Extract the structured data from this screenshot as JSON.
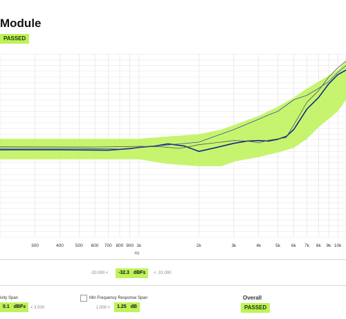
{
  "header": {
    "title": "Module",
    "status": "PASSED"
  },
  "chart_data": {
    "type": "line",
    "xlabel": "Hz",
    "x_scale": "log",
    "xlim": [
      200,
      11000
    ],
    "ylim": [
      -40,
      40
    ],
    "x_tick_values": [
      300,
      400,
      500,
      600,
      700,
      800,
      900,
      1000,
      2000,
      3000,
      4000,
      5000,
      6000,
      7000,
      8000,
      9000,
      10000
    ],
    "x_tick_labels": [
      "300",
      "400",
      "500",
      "600",
      "700",
      "800",
      "900",
      "1k",
      "2k",
      "3k",
      "4k",
      "5k",
      "6k",
      "7k",
      "8k",
      "9k",
      "10k"
    ],
    "grid": true,
    "tolerance_band": {
      "color": "#bff25a",
      "x": [
        200,
        500,
        800,
        1000,
        1400,
        2000,
        2600,
        3000,
        4000,
        5000,
        6000,
        7000,
        8000,
        10000,
        11000
      ],
      "upper": [
        3,
        3,
        3,
        3,
        4,
        5,
        7,
        9,
        13,
        17,
        21,
        25,
        28,
        33,
        37
      ],
      "lower": [
        -6,
        -6,
        -6,
        -6,
        -8,
        -9,
        -9,
        -7,
        -5,
        -3,
        -1,
        3,
        8,
        15,
        20
      ]
    },
    "series": [
      {
        "color": "#0a2a8c",
        "width": 1.6,
        "x": [
          200,
          400,
          700,
          900,
          1000,
          1200,
          1400,
          1700,
          2000,
          2400,
          3000,
          3500,
          4000,
          4500,
          5000,
          5500,
          6000,
          7000,
          8000,
          9000,
          10000,
          11000
        ],
        "y": [
          -1.8,
          -1.8,
          -2,
          -1.3,
          -0.8,
          -0.2,
          0.8,
          -0.2,
          -2.5,
          -1,
          1,
          2,
          2.2,
          2,
          2.8,
          4,
          7,
          16,
          21,
          27,
          31,
          33
        ]
      },
      {
        "color": "#3b4aa8",
        "width": 0.8,
        "x": [
          200,
          500,
          800,
          1000,
          1400,
          2000,
          2400,
          3000,
          3500,
          4000,
          4500,
          5000,
          6000,
          7000,
          8000,
          9000,
          10000,
          11000
        ],
        "y": [
          -1.2,
          -1.2,
          -1.5,
          -0.8,
          0.3,
          1.5,
          4,
          7,
          9.5,
          11.5,
          13.5,
          15,
          20,
          22,
          25,
          28,
          32,
          35
        ]
      },
      {
        "color": "#555555",
        "width": 0.8,
        "x": [
          200,
          600,
          900,
          1000,
          1300,
          1600,
          2000,
          2400,
          3000,
          3500,
          4000,
          4500,
          5000,
          5500,
          6000,
          7000,
          8000,
          9000,
          10000,
          11000
        ],
        "y": [
          -0.5,
          -0.6,
          -0.4,
          -0.3,
          -0.5,
          -1.2,
          0.4,
          1.2,
          2.2,
          2,
          1.2,
          2.4,
          3,
          3.5,
          9,
          19,
          24,
          30,
          34,
          37
        ]
      }
    ]
  },
  "level_readout": {
    "min_text": "-33.000 <",
    "value": "-32.3",
    "unit": "dBFs",
    "max_text": "< -31.000"
  },
  "sensitivity_span": {
    "label": "ivity Span",
    "value": "0.1",
    "unit": "dBFs",
    "limit_text": "< 3.000"
  },
  "freq_response_span": {
    "label": "Min Frequency Response Span",
    "limit_text": "1.000 <",
    "value": "1.25",
    "unit": "dB"
  },
  "overall": {
    "label": "Overall",
    "status": "PASSED"
  }
}
